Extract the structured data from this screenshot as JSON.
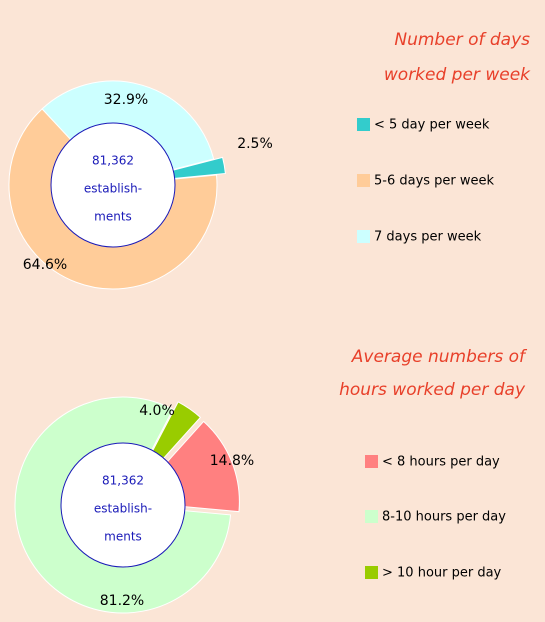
{
  "chart_data": [
    {
      "type": "pie",
      "title": [
        "Number of days",
        "worked per week"
      ],
      "center_text": [
        "81,362",
        "establish-",
        "ments"
      ],
      "categories": [
        "< 5 day per week",
        "5-6 days per week",
        "7 days per week"
      ],
      "values": [
        2.5,
        64.6,
        32.9
      ],
      "value_labels": [
        "2.5%",
        "64.6%",
        "32.9%"
      ],
      "colors": [
        "#33cccc",
        "#ffcc99",
        "#ccffff"
      ],
      "legend": "right"
    },
    {
      "type": "pie",
      "title": [
        "Average numbers of",
        "hours worked per day"
      ],
      "center_text": [
        "81,362",
        "establish-",
        "ments"
      ],
      "categories": [
        "< 8 hours per day",
        "8-10 hours per day",
        "> 10 hour per day"
      ],
      "values": [
        14.8,
        81.2,
        4.0
      ],
      "value_labels": [
        "14.8%",
        "81.2%",
        "4.0%"
      ],
      "colors": [
        "#ff8080",
        "#ccffcc",
        "#99cc00"
      ],
      "legend": "right"
    }
  ]
}
